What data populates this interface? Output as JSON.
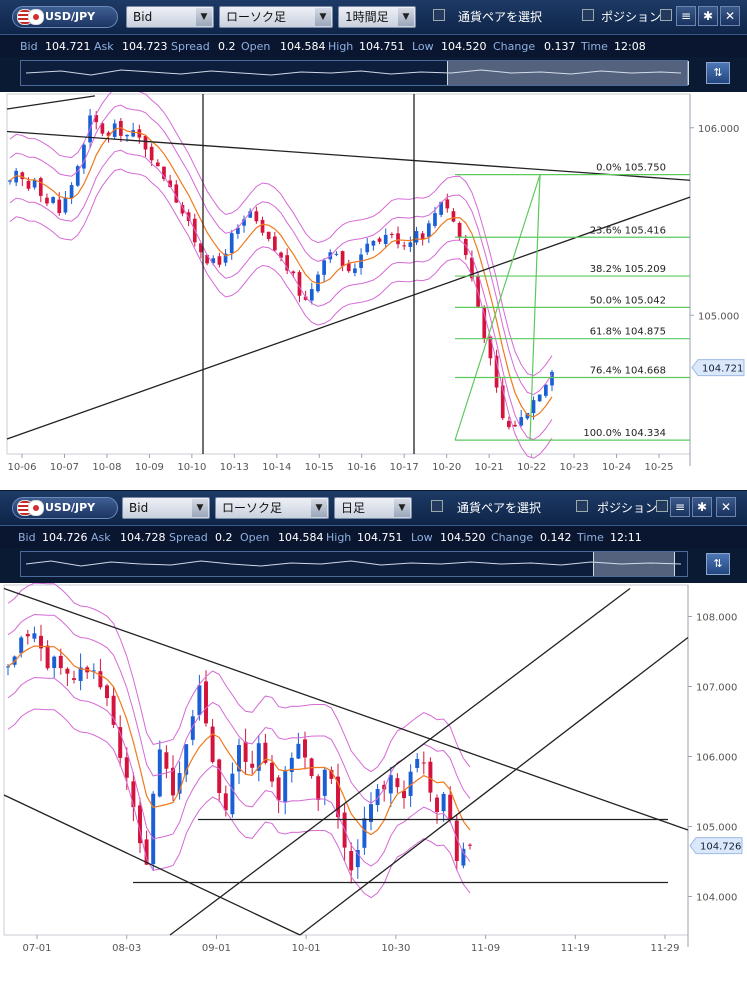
{
  "panel1": {
    "toolbar": {
      "pair": "USD/JPY",
      "price_type": "Bid",
      "chart_kind": "ローソク足",
      "timeframe": "1時間足",
      "select_pair": "通貨ペアを選択",
      "position": "ポジション"
    },
    "quote": {
      "bid_label": "Bid",
      "bid": "104.721",
      "ask_label": "Ask",
      "ask": "104.723",
      "spread_label": "Spread",
      "spread": "0.2",
      "open_label": "Open",
      "open": "104.584",
      "high_label": "High",
      "high": "104.751",
      "low_label": "Low",
      "low": "104.520",
      "change_label": "Change",
      "change": "0.137",
      "time_label": "Time",
      "time": "12:08"
    }
  },
  "panel2": {
    "toolbar": {
      "pair": "USD/JPY",
      "price_type": "Bid",
      "chart_kind": "ローソク足",
      "timeframe": "日足",
      "select_pair": "通貨ペアを選択",
      "position": "ポジション"
    },
    "quote": {
      "bid_label": "Bid",
      "bid": "104.726",
      "ask_label": "Ask",
      "ask": "104.728",
      "spread_label": "Spread",
      "spread": "0.2",
      "open_label": "Open",
      "open": "104.584",
      "high_label": "High",
      "high": "104.751",
      "low_label": "Low",
      "low": "104.520",
      "change_label": "Change",
      "change": "0.142",
      "time_label": "Time",
      "time": "12:11"
    }
  },
  "colors": {
    "up": "#1a5fd6",
    "down": "#d4143c",
    "ma": "#f07a1e",
    "band": "#d66ad6",
    "fib": "#5dc95d",
    "line": "#222222",
    "label_bg": "#dbe8fb"
  },
  "chart_data": [
    {
      "type": "candlestick",
      "timeframe": "1時間足",
      "x_tick_labels": [
        "10-06",
        "10-07",
        "10-08",
        "10-09",
        "10-10",
        "10-13",
        "10-14",
        "10-15",
        "10-16",
        "10-17",
        "10-20",
        "10-21",
        "10-22",
        "10-23",
        "10-24",
        "10-25"
      ],
      "y_tick_labels": [
        "106.000",
        "105.000"
      ],
      "ylim": [
        104.26,
        106.18
      ],
      "current_price_label": "104.721",
      "close_path": [
        105.7,
        105.75,
        105.72,
        105.68,
        105.74,
        105.66,
        105.6,
        105.62,
        105.55,
        105.62,
        105.7,
        105.8,
        105.9,
        106.05,
        106.02,
        105.98,
        105.95,
        106.0,
        105.98,
        105.96,
        105.97,
        105.94,
        105.9,
        105.85,
        105.78,
        105.74,
        105.7,
        105.62,
        105.55,
        105.48,
        105.4,
        105.35,
        105.3,
        105.28,
        105.27,
        105.35,
        105.42,
        105.45,
        105.5,
        105.55,
        105.48,
        105.43,
        105.39,
        105.35,
        105.3,
        105.25,
        105.2,
        105.12,
        105.08,
        105.15,
        105.24,
        105.3,
        105.36,
        105.31,
        105.27,
        105.22,
        105.26,
        105.34,
        105.39,
        105.42,
        105.39,
        105.44,
        105.42,
        105.4,
        105.38,
        105.41,
        105.45,
        105.43,
        105.48,
        105.55,
        105.62,
        105.58,
        105.5,
        105.42,
        105.32,
        105.2,
        105.05,
        104.9,
        104.75,
        104.6,
        104.45,
        104.4,
        104.42,
        104.45,
        104.5,
        104.55,
        104.6,
        104.65,
        104.72
      ],
      "fibonacci": [
        {
          "level": "0.0%",
          "price": "105.750"
        },
        {
          "level": "23.6%",
          "price": "105.416"
        },
        {
          "level": "38.2%",
          "price": "105.209"
        },
        {
          "level": "50.0%",
          "price": "105.042"
        },
        {
          "level": "61.8%",
          "price": "104.875"
        },
        {
          "level": "76.4%",
          "price": "104.668"
        },
        {
          "level": "100.0%",
          "price": "104.334"
        }
      ],
      "vertical_lines_at": [
        "10-10",
        "10-17"
      ]
    },
    {
      "type": "candlestick",
      "timeframe": "日足",
      "x_tick_labels": [
        "07-01",
        "08-03",
        "09-01",
        "10-01",
        "10-30",
        "11-09",
        "11-19",
        "11-29"
      ],
      "y_tick_labels": [
        "108.000",
        "107.000",
        "106.000",
        "105.000",
        "104.000"
      ],
      "ylim": [
        103.45,
        108.45
      ],
      "current_price_label": "104.726",
      "close_path": [
        107.2,
        107.4,
        107.6,
        107.8,
        107.7,
        107.5,
        107.3,
        107.4,
        107.2,
        107.3,
        107.0,
        107.2,
        107.1,
        107.3,
        107.0,
        106.8,
        106.5,
        106.0,
        105.6,
        105.2,
        104.8,
        104.5,
        105.5,
        106.0,
        105.8,
        105.4,
        105.7,
        106.2,
        106.6,
        107.0,
        106.5,
        106.0,
        105.6,
        105.3,
        105.7,
        106.1,
        105.9,
        105.8,
        106.2,
        106.0,
        105.6,
        105.3,
        105.8,
        106.0,
        106.2,
        106.0,
        105.7,
        105.5,
        105.8,
        105.6,
        105.2,
        104.7,
        104.3,
        104.6,
        105.0,
        105.4,
        105.6,
        105.5,
        105.7,
        105.6,
        105.5,
        105.7,
        105.9,
        106.0,
        105.5,
        105.3,
        105.5,
        105.2,
        104.6,
        104.7,
        104.72
      ],
      "horizontal_lines": [
        "105.100",
        "104.200"
      ]
    }
  ]
}
